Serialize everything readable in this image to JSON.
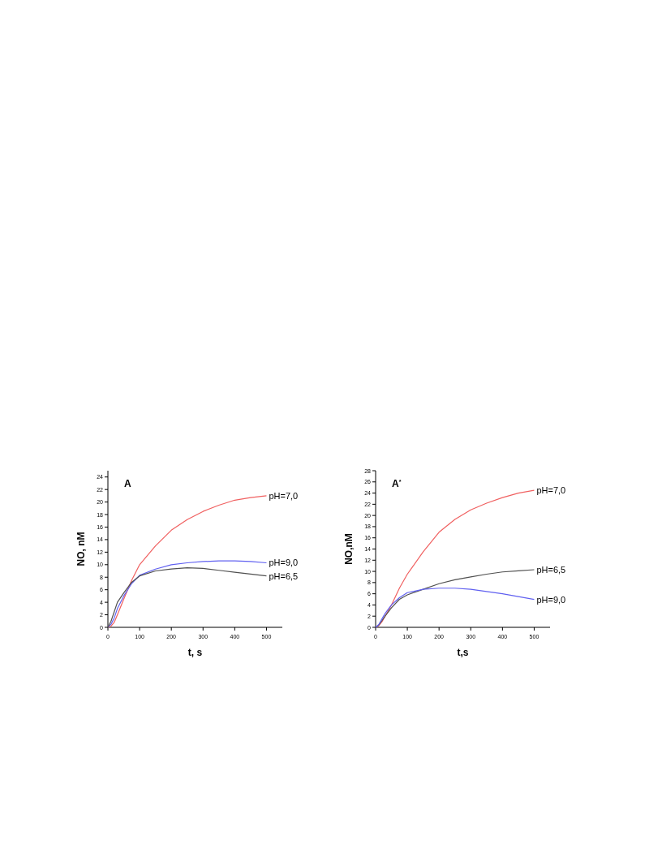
{
  "chart_data": [
    {
      "type": "line",
      "title": "A",
      "xlabel": "t, s",
      "ylabel": "NO, nM",
      "xlim": [
        0,
        550
      ],
      "ylim": [
        0,
        25
      ],
      "xticks": [
        0,
        100,
        200,
        300,
        400,
        500
      ],
      "yticks": [
        0,
        2,
        4,
        6,
        8,
        10,
        12,
        14,
        16,
        18,
        20,
        22,
        24
      ],
      "x": [
        0,
        10,
        20,
        30,
        50,
        75,
        100,
        150,
        200,
        250,
        300,
        350,
        400,
        450,
        500
      ],
      "marker": "none",
      "line_style": "solid",
      "series": [
        {
          "name": "pH=7,0",
          "color": "#f06060",
          "values": [
            0,
            0.2,
            0.8,
            2,
            4.5,
            7.5,
            10,
            13,
            15.5,
            17.2,
            18.5,
            19.5,
            20.3,
            20.7,
            21
          ]
        },
        {
          "name": "pH=9,0",
          "color": "#6060f0",
          "values": [
            0,
            0.5,
            1.5,
            3,
            5,
            7,
            8.3,
            9.3,
            10,
            10.3,
            10.5,
            10.6,
            10.6,
            10.5,
            10.3
          ]
        },
        {
          "name": "pH=6,5",
          "color": "#505050",
          "values": [
            0,
            1,
            2.5,
            4,
            5.5,
            7.2,
            8.2,
            9,
            9.3,
            9.5,
            9.4,
            9.1,
            8.8,
            8.5,
            8.2
          ]
        }
      ]
    },
    {
      "type": "line",
      "title": "A$^{*}$",
      "xlabel": "t,s",
      "ylabel": "NO,nM",
      "xlim": [
        0,
        550
      ],
      "ylim": [
        0,
        28
      ],
      "xticks": [
        0,
        100,
        200,
        300,
        400,
        500
      ],
      "yticks": [
        0,
        2,
        4,
        6,
        8,
        10,
        12,
        14,
        16,
        18,
        20,
        22,
        24,
        26,
        28
      ],
      "x": [
        0,
        10,
        20,
        30,
        50,
        75,
        100,
        150,
        200,
        250,
        300,
        350,
        400,
        450,
        500
      ],
      "marker": "none",
      "line_style": "solid",
      "series": [
        {
          "name": "pH=7,0",
          "color": "#f06060",
          "values": [
            0,
            0.3,
            1,
            2,
            4,
            7,
            9.5,
            13.5,
            17,
            19.3,
            21,
            22.2,
            23.2,
            24,
            24.5
          ]
        },
        {
          "name": "pH=6,5",
          "color": "#505050",
          "values": [
            0,
            0.4,
            1.2,
            2,
            3.5,
            5,
            5.8,
            6.8,
            7.8,
            8.5,
            9,
            9.5,
            9.9,
            10.1,
            10.3
          ]
        },
        {
          "name": "pH=9,0",
          "color": "#6060f0",
          "values": [
            0,
            0.5,
            1.5,
            2.5,
            4,
            5.3,
            6.2,
            6.8,
            7,
            7,
            6.8,
            6.4,
            6,
            5.5,
            5
          ]
        }
      ]
    }
  ]
}
